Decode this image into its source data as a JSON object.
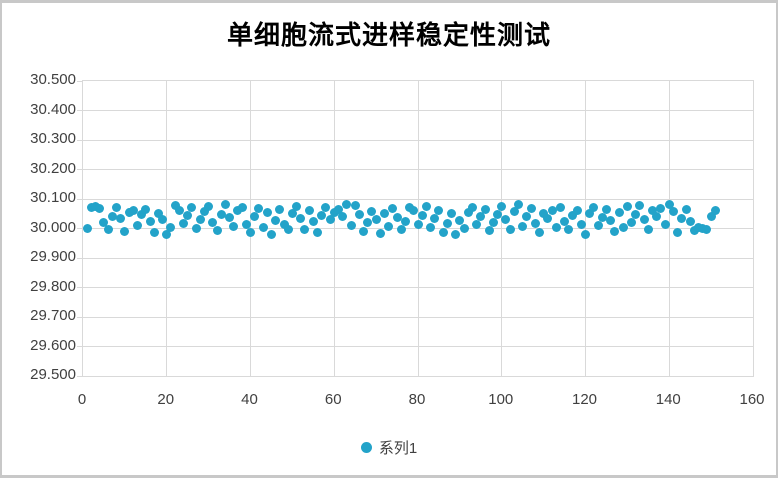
{
  "title": "单细胞流式进样稳定性测试",
  "colors": {
    "marker": "#23a3c9",
    "gridline": "#d9d9d9",
    "axis_text": "#404040",
    "title_text": "#000000",
    "frame_border": "#c8c8c8",
    "background": "#ffffff"
  },
  "legend": {
    "series_label": "系列1",
    "marker_color": "#23a3c9",
    "position": "bottom"
  },
  "chart_data": {
    "type": "scatter",
    "title": "单细胞流式进样稳定性测试",
    "xlabel": "",
    "ylabel": "",
    "xlim": [
      0,
      160
    ],
    "ylim": [
      29.5,
      30.5
    ],
    "x_ticks": [
      0,
      20,
      40,
      60,
      80,
      100,
      120,
      140,
      160
    ],
    "y_tick_labels": [
      "30.500",
      "30.400",
      "30.300",
      "30.200",
      "30.100",
      "30.000",
      "29.900",
      "29.800",
      "29.700",
      "29.600",
      "29.500"
    ],
    "y_tick_values": [
      30.5,
      30.4,
      30.3,
      30.2,
      30.1,
      30.0,
      29.9,
      29.8,
      29.7,
      29.6,
      29.5
    ],
    "grid": true,
    "legend_position": "bottom",
    "series": [
      {
        "name": "系列1",
        "color": "#23a3c9",
        "x": [
          1,
          2,
          3,
          4,
          5,
          6,
          7,
          8,
          9,
          10,
          11,
          12,
          13,
          14,
          15,
          16,
          17,
          18,
          19,
          20,
          21,
          22,
          23,
          24,
          25,
          26,
          27,
          28,
          29,
          30,
          31,
          32,
          33,
          34,
          35,
          36,
          37,
          38,
          39,
          40,
          41,
          42,
          43,
          44,
          45,
          46,
          47,
          48,
          49,
          50,
          51,
          52,
          53,
          54,
          55,
          56,
          57,
          58,
          59,
          60,
          61,
          62,
          63,
          64,
          65,
          66,
          67,
          68,
          69,
          70,
          71,
          72,
          73,
          74,
          75,
          76,
          77,
          78,
          79,
          80,
          81,
          82,
          83,
          84,
          85,
          86,
          87,
          88,
          89,
          90,
          91,
          92,
          93,
          94,
          95,
          96,
          97,
          98,
          99,
          100,
          101,
          102,
          103,
          104,
          105,
          106,
          107,
          108,
          109,
          110,
          111,
          112,
          113,
          114,
          115,
          116,
          117,
          118,
          119,
          120,
          121,
          122,
          123,
          124,
          125,
          126,
          127,
          128,
          129,
          130,
          131,
          132,
          133,
          134,
          135,
          136,
          137,
          138,
          139,
          140,
          141,
          142,
          143,
          144,
          145,
          146,
          147,
          148,
          149,
          150,
          151
        ],
        "y": [
          30.0,
          30.07,
          30.075,
          30.068,
          30.02,
          29.995,
          30.04,
          30.072,
          30.035,
          29.99,
          30.055,
          30.06,
          30.01,
          30.048,
          30.065,
          30.025,
          29.985,
          30.05,
          30.03,
          29.98,
          30.005,
          30.078,
          30.06,
          30.018,
          30.045,
          30.07,
          30.0,
          30.032,
          30.058,
          30.075,
          30.022,
          29.992,
          30.048,
          30.08,
          30.038,
          30.008,
          30.062,
          30.07,
          30.015,
          29.988,
          30.042,
          30.068,
          30.002,
          30.055,
          29.978,
          30.028,
          30.065,
          30.012,
          29.995,
          30.05,
          30.075,
          30.035,
          29.998,
          30.06,
          30.025,
          29.985,
          30.045,
          30.07,
          30.03,
          30.055,
          30.065,
          30.04,
          30.08,
          30.01,
          30.078,
          30.048,
          29.99,
          30.02,
          30.058,
          30.032,
          29.982,
          30.052,
          30.008,
          30.068,
          30.038,
          29.996,
          30.025,
          30.072,
          30.06,
          30.015,
          30.045,
          30.075,
          30.005,
          30.035,
          30.062,
          29.988,
          30.018,
          30.05,
          29.978,
          30.028,
          30.0,
          30.055,
          30.07,
          30.012,
          30.04,
          30.065,
          29.992,
          30.022,
          30.048,
          30.075,
          30.03,
          29.998,
          30.058,
          30.08,
          30.008,
          30.042,
          30.068,
          30.018,
          29.985,
          30.052,
          30.035,
          30.062,
          30.002,
          30.072,
          30.025,
          29.995,
          30.045,
          30.06,
          30.015,
          29.98,
          30.05,
          30.07,
          30.01,
          30.038,
          30.065,
          30.028,
          29.99,
          30.055,
          30.005,
          30.075,
          30.02,
          30.048,
          30.078,
          30.032,
          29.998,
          30.06,
          30.042,
          30.068,
          30.012,
          30.08,
          30.058,
          29.988,
          30.035,
          30.065,
          30.025,
          29.992,
          30.005,
          30.0,
          29.998,
          30.04,
          30.062
        ]
      }
    ]
  }
}
